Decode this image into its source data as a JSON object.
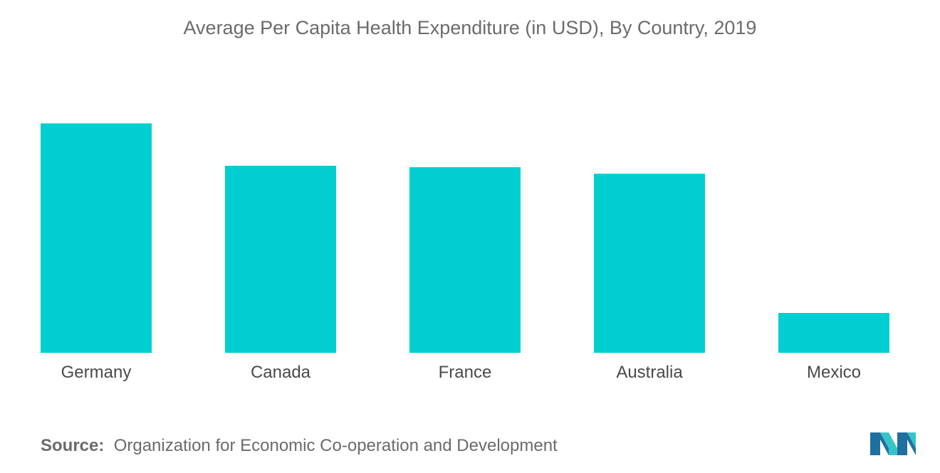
{
  "chart_data": {
    "type": "bar",
    "title": "Average Per Capita Health Expenditure (in USD), By Country, 2019",
    "categories": [
      "Germany",
      "Canada",
      "France",
      "Australia",
      "Mexico"
    ],
    "values": [
      6646,
      5418,
      5376,
      5187,
      1154
    ],
    "bar_color": "#00CED1",
    "xlabel": "",
    "ylabel": "",
    "ylim": [
      0,
      7500
    ],
    "grid": false,
    "legend": "none"
  },
  "source": {
    "label": "Source:",
    "text": "Organization for Economic Co-operation and Development"
  },
  "logo": {
    "icon": "mordor-intelligence-logo-icon"
  },
  "colors": {
    "logo_dark": "#1f6f9f",
    "logo_light": "#37c4c9",
    "text": "#6b6b6b"
  }
}
